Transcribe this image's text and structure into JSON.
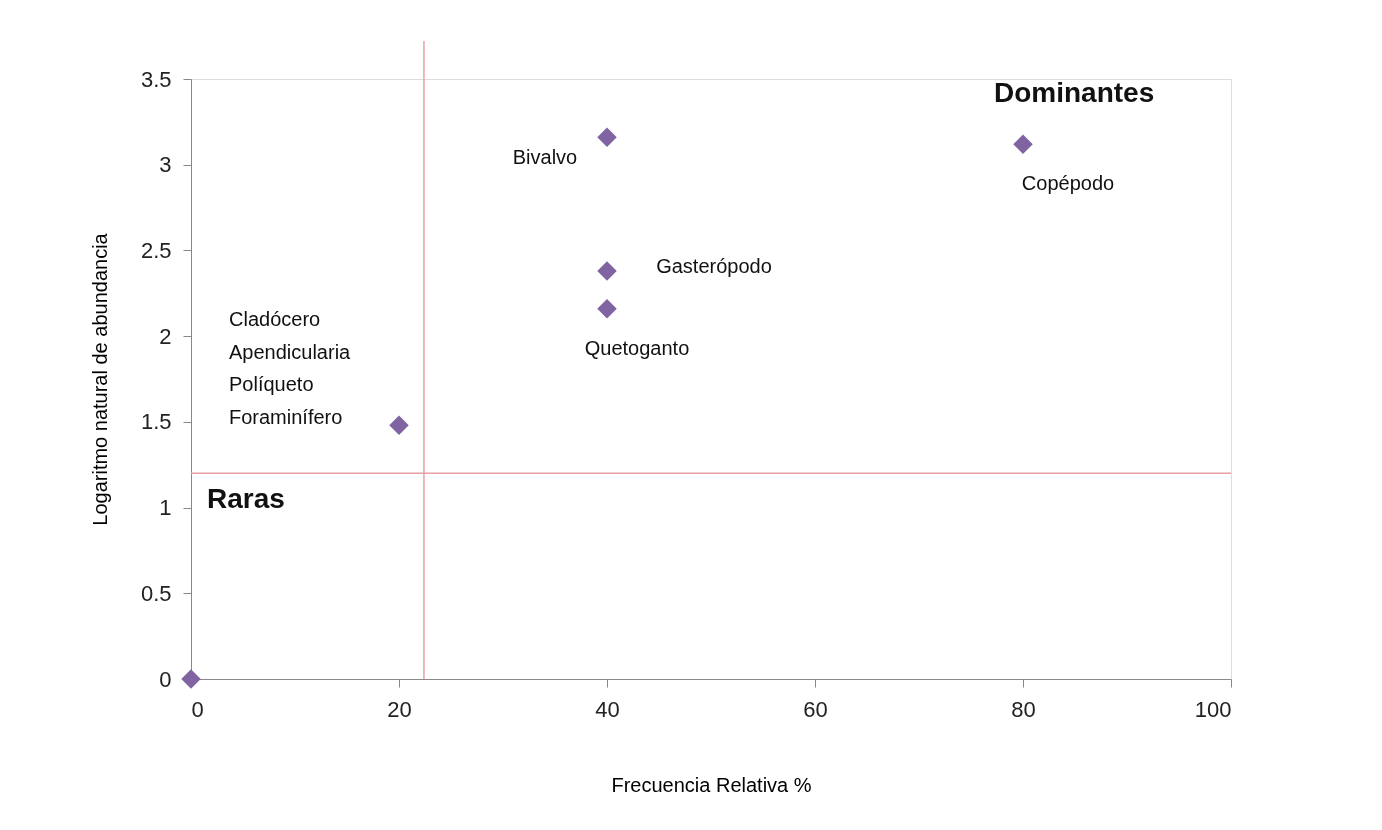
{
  "chart_data": {
    "type": "scatter",
    "xlabel": "Frecuencia Relativa %",
    "ylabel": "Logaritmo natural de abundancia",
    "x": [
      0,
      20,
      40,
      40,
      40,
      80
    ],
    "series": [
      {
        "color": "#8064a2",
        "values": [
          0,
          1.48,
          2.16,
          2.38,
          3.16,
          3.12
        ]
      }
    ],
    "xlim": [
      0,
      100
    ],
    "xticks": [
      0,
      20,
      40,
      60,
      80,
      100
    ],
    "ylim": [
      0,
      3.5
    ],
    "yticks": [
      0,
      0.5,
      1,
      1.5,
      2,
      2.5,
      3,
      3.5
    ],
    "grid": false,
    "marker": "diamond",
    "ref_lines": [
      {
        "axis": "x",
        "value": 22.4,
        "color": "#e8a0a8"
      },
      {
        "axis": "y",
        "value": 1.2,
        "color": "#e8a0a8"
      }
    ],
    "annotations": [
      "Dominantes",
      "Raras",
      "Bivalvo",
      "Copépodo",
      "Gasterópodo",
      "Quetoganto",
      "Cladócero",
      "Apendicularia",
      "Políqueto",
      "Foraminífero"
    ]
  }
}
